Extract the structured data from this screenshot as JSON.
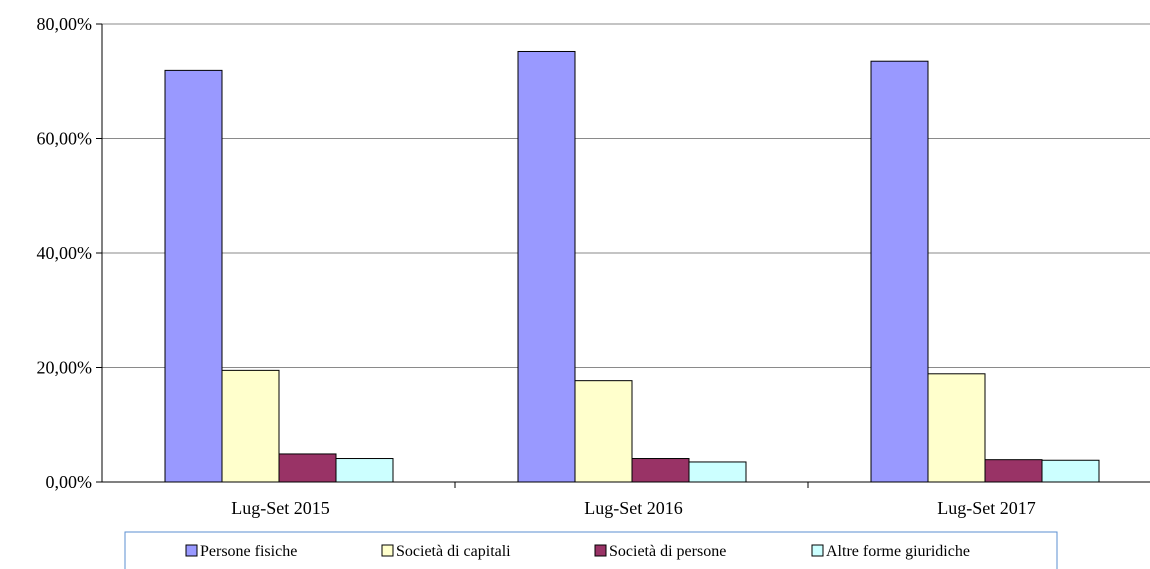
{
  "chart_data": {
    "type": "bar",
    "categories": [
      "Lug-Set 2015",
      "Lug-Set 2016",
      "Lug-Set 2017"
    ],
    "series": [
      {
        "name": "Persone fisiche",
        "values": [
          71.9,
          75.2,
          73.5
        ],
        "color": "#9999ff"
      },
      {
        "name": "Società di capitali",
        "values": [
          19.5,
          17.7,
          18.9
        ],
        "color": "#ffffcc"
      },
      {
        "name": "Società di persone",
        "values": [
          4.9,
          4.1,
          3.9
        ],
        "color": "#993366"
      },
      {
        "name": "Altre forme giuridiche",
        "values": [
          4.1,
          3.5,
          3.8
        ],
        "color": "#ccffff"
      }
    ],
    "ylim": [
      0,
      80
    ],
    "yticks": [
      "0,00%",
      "20,00%",
      "40,00%",
      "60,00%",
      "80,00%"
    ],
    "grid": true,
    "legend_position": "bottom",
    "title": "",
    "xlabel": "",
    "ylabel": ""
  }
}
